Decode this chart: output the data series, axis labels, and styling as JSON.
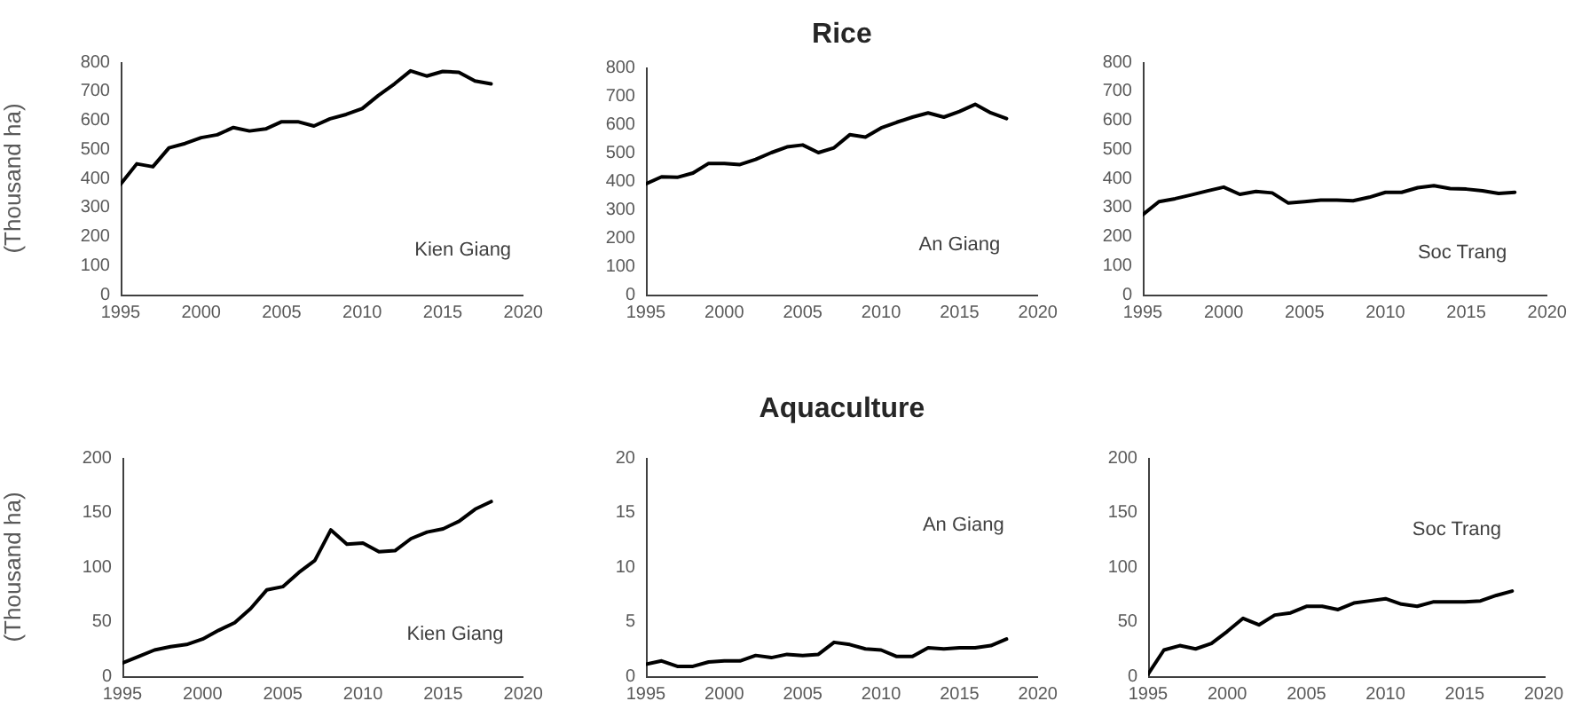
{
  "chart_data": [
    {
      "type": "line",
      "ylabel": "(Thousand ha)",
      "x": [
        1995,
        1996,
        1997,
        1998,
        1999,
        2000,
        2001,
        2002,
        2003,
        2004,
        2005,
        2006,
        2007,
        2008,
        2009,
        2010,
        2011,
        2012,
        2013,
        2014,
        2015,
        2016,
        2017,
        2018
      ],
      "values": [
        380,
        450,
        440,
        505,
        520,
        540,
        550,
        575,
        563,
        570,
        595,
        595,
        580,
        605,
        620,
        640,
        685,
        725,
        770,
        752,
        768,
        765,
        735,
        725
      ],
      "color": "#000000",
      "xlim": [
        1995,
        2020
      ],
      "xticks": [
        1995,
        2000,
        2005,
        2010,
        2015,
        2020
      ],
      "ylim": [
        0,
        800
      ],
      "yticks": [
        0,
        100,
        200,
        300,
        400,
        500,
        600,
        700,
        800
      ],
      "marker": "none",
      "annotations": [
        "Kien Giang"
      ]
    },
    {
      "type": "line",
      "title": "Rice",
      "x": [
        1995,
        1996,
        1997,
        1998,
        1999,
        2000,
        2001,
        2002,
        2003,
        2004,
        2005,
        2006,
        2007,
        2008,
        2009,
        2010,
        2011,
        2012,
        2013,
        2014,
        2015,
        2016,
        2017,
        2018
      ],
      "values": [
        390,
        415,
        413,
        428,
        462,
        462,
        458,
        476,
        500,
        520,
        527,
        500,
        517,
        563,
        555,
        587,
        607,
        625,
        640,
        625,
        645,
        670,
        640,
        620
      ],
      "color": "#000000",
      "xlim": [
        1995,
        2020
      ],
      "xticks": [
        1995,
        2000,
        2005,
        2010,
        2015,
        2020
      ],
      "ylim": [
        0,
        800
      ],
      "yticks": [
        0,
        100,
        200,
        300,
        400,
        500,
        600,
        700,
        800
      ],
      "marker": "none",
      "annotations": [
        "An Giang"
      ]
    },
    {
      "type": "line",
      "x": [
        1995,
        1996,
        1997,
        1998,
        1999,
        2000,
        2001,
        2002,
        2003,
        2004,
        2005,
        2006,
        2007,
        2008,
        2009,
        2010,
        2011,
        2012,
        2013,
        2014,
        2015,
        2016,
        2017,
        2018
      ],
      "values": [
        275,
        320,
        330,
        343,
        357,
        370,
        345,
        355,
        350,
        315,
        320,
        325,
        325,
        323,
        335,
        352,
        352,
        368,
        375,
        365,
        363,
        357,
        348,
        352
      ],
      "color": "#000000",
      "xlim": [
        1995,
        2020
      ],
      "xticks": [
        1995,
        2000,
        2005,
        2010,
        2015,
        2020
      ],
      "ylim": [
        0,
        800
      ],
      "yticks": [
        0,
        100,
        200,
        300,
        400,
        500,
        600,
        700,
        800
      ],
      "marker": "none",
      "annotations": [
        "Soc Trang"
      ]
    },
    {
      "type": "line",
      "ylabel": "(Thousand ha)",
      "x": [
        1995,
        1996,
        1997,
        1998,
        1999,
        2000,
        2001,
        2002,
        2003,
        2004,
        2005,
        2006,
        2007,
        2008,
        2009,
        2010,
        2011,
        2012,
        2013,
        2014,
        2015,
        2016,
        2017,
        2018
      ],
      "values": [
        12,
        18,
        24,
        27,
        29,
        34,
        42,
        49,
        62,
        79,
        82,
        95,
        106,
        134,
        121,
        122,
        114,
        115,
        126,
        132,
        135,
        142,
        153,
        160
      ],
      "color": "#000000",
      "xlim": [
        1995,
        2020
      ],
      "xticks": [
        1995,
        2000,
        2005,
        2010,
        2015,
        2020
      ],
      "ylim": [
        0,
        200
      ],
      "yticks": [
        0,
        50,
        100,
        150,
        200
      ],
      "marker": "none",
      "annotations": [
        "Kien Giang"
      ]
    },
    {
      "type": "line",
      "title": "Aquaculture",
      "x": [
        1995,
        1996,
        1997,
        1998,
        1999,
        2000,
        2001,
        2002,
        2003,
        2004,
        2005,
        2006,
        2007,
        2008,
        2009,
        2010,
        2011,
        2012,
        2013,
        2014,
        2015,
        2016,
        2017,
        2018
      ],
      "values": [
        1.1,
        1.4,
        0.9,
        0.9,
        1.3,
        1.4,
        1.4,
        1.9,
        1.7,
        2.0,
        1.9,
        2.0,
        3.1,
        2.9,
        2.5,
        2.4,
        1.8,
        1.8,
        2.6,
        2.5,
        2.6,
        2.6,
        2.8,
        3.4
      ],
      "color": "#000000",
      "xlim": [
        1995,
        2020
      ],
      "xticks": [
        1995,
        2000,
        2005,
        2010,
        2015,
        2020
      ],
      "ylim": [
        0,
        20
      ],
      "yticks": [
        0,
        5,
        10,
        15,
        20
      ],
      "marker": "none",
      "annotations": [
        "An Giang"
      ]
    },
    {
      "type": "line",
      "x": [
        1995,
        1996,
        1997,
        1998,
        1999,
        2000,
        2001,
        2002,
        2003,
        2004,
        2005,
        2006,
        2007,
        2008,
        2009,
        2010,
        2011,
        2012,
        2013,
        2014,
        2015,
        2016,
        2017,
        2018
      ],
      "values": [
        2,
        24,
        28,
        25,
        30,
        41,
        53,
        47,
        56,
        58,
        64,
        64,
        61,
        67,
        69,
        71,
        66,
        64,
        68,
        68,
        68,
        69,
        74,
        78
      ],
      "color": "#000000",
      "xlim": [
        1995,
        2020
      ],
      "xticks": [
        1995,
        2000,
        2005,
        2010,
        2015,
        2020
      ],
      "ylim": [
        0,
        200
      ],
      "yticks": [
        0,
        50,
        100,
        150,
        200
      ],
      "marker": "none",
      "annotations": [
        "Soc Trang"
      ]
    }
  ]
}
